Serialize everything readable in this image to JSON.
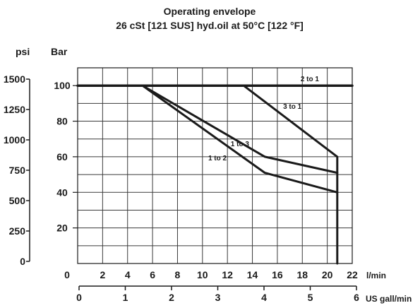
{
  "chart_data": {
    "type": "line",
    "title": "Operating envelope",
    "subtitle": "26 cSt [121 SUS] hyd.oil at 50°C [122 °F]",
    "y_left_unit": "psi",
    "y_right_unit": "Bar",
    "x_primary_unit": "l/min",
    "x_secondary_unit": "US gall/min",
    "origin_label": "0",
    "xlim": [
      0,
      22
    ],
    "ylim": [
      0,
      110
    ],
    "grid": true,
    "x_ticks": [
      {
        "value": 2,
        "label": "2"
      },
      {
        "value": 4,
        "label": "4"
      },
      {
        "value": 6,
        "label": "6"
      },
      {
        "value": 8,
        "label": "8"
      },
      {
        "value": 10,
        "label": "10"
      },
      {
        "value": 12,
        "label": "12"
      },
      {
        "value": 14,
        "label": "14"
      },
      {
        "value": 16,
        "label": "16"
      },
      {
        "value": 18,
        "label": "18"
      },
      {
        "value": 20,
        "label": "20"
      },
      {
        "value": 22,
        "label": "22"
      }
    ],
    "x_secondary_ticks": [
      {
        "value": 0,
        "label": "0"
      },
      {
        "value": 1,
        "label": "1"
      },
      {
        "value": 2,
        "label": "2"
      },
      {
        "value": 3,
        "label": "3"
      },
      {
        "value": 4,
        "label": "4"
      },
      {
        "value": 5,
        "label": "5"
      },
      {
        "value": 6,
        "label": "6"
      }
    ],
    "y_bar_ticks": [
      {
        "value": 20,
        "label": "20"
      },
      {
        "value": 40,
        "label": "40"
      },
      {
        "value": 60,
        "label": "60"
      },
      {
        "value": 80,
        "label": "80"
      },
      {
        "value": 100,
        "label": "100"
      }
    ],
    "y_psi_ticks": [
      {
        "value": 0,
        "label": "0"
      },
      {
        "value": 250,
        "label": "250"
      },
      {
        "value": 500,
        "label": "500"
      },
      {
        "value": 750,
        "label": "750"
      },
      {
        "value": 1000,
        "label": "1000"
      },
      {
        "value": 1250,
        "label": "1250"
      },
      {
        "value": 1500,
        "label": "1500"
      }
    ],
    "series": [
      {
        "name": "2 to 1",
        "x": [
          0,
          22
        ],
        "y": [
          100,
          100
        ]
      },
      {
        "name": "3 to 1",
        "x": [
          13.3,
          20.8,
          20.8
        ],
        "y": [
          100,
          60,
          0
        ]
      },
      {
        "name": "1 to 3",
        "x": [
          5.2,
          15,
          20.8
        ],
        "y": [
          100,
          60,
          51
        ]
      },
      {
        "name": "1 to 2",
        "x": [
          5.2,
          15,
          20.8
        ],
        "y": [
          100,
          51,
          40
        ]
      }
    ]
  },
  "colors": {
    "line": "#1a1a1a",
    "grid": "#3a3a3a",
    "background": "#ffffff"
  }
}
